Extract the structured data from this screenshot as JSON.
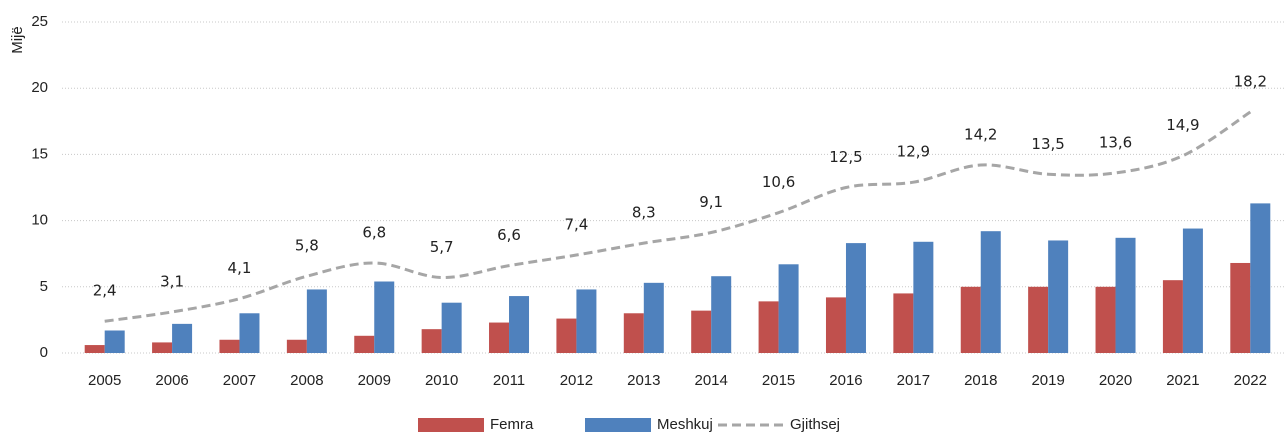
{
  "chart_data": {
    "type": "bar",
    "y_label": "Mijë",
    "categories": [
      "2005",
      "2006",
      "2007",
      "2008",
      "2009",
      "2010",
      "2011",
      "2012",
      "2013",
      "2014",
      "2015",
      "2016",
      "2017",
      "2018",
      "2019",
      "2020",
      "2021",
      "2022"
    ],
    "series": [
      {
        "name": "Femra",
        "type": "bar",
        "color": "#c0504d",
        "values": [
          0.6,
          0.8,
          1.0,
          1.0,
          1.3,
          1.8,
          2.3,
          2.6,
          3.0,
          3.2,
          3.9,
          4.2,
          4.5,
          5.0,
          5.0,
          5.0,
          5.5,
          6.8
        ]
      },
      {
        "name": "Meshkuj",
        "type": "bar",
        "color": "#4f81bd",
        "values": [
          1.7,
          2.2,
          3.0,
          4.8,
          5.4,
          3.8,
          4.3,
          4.8,
          5.3,
          5.8,
          6.7,
          8.3,
          8.4,
          9.2,
          8.5,
          8.7,
          9.4,
          11.3
        ]
      },
      {
        "name": "Gjithsej",
        "type": "line",
        "color": "#a6a6a6",
        "values": [
          2.4,
          3.1,
          4.1,
          5.8,
          6.8,
          5.7,
          6.6,
          7.4,
          8.3,
          9.1,
          10.6,
          12.5,
          12.9,
          14.2,
          13.5,
          13.6,
          14.9,
          18.2
        ],
        "value_labels": [
          "2,4",
          "3,1",
          "4,1",
          "5,8",
          "6,8",
          "5,7",
          "6,6",
          "7,4",
          "8,3",
          "9,1",
          "10,6",
          "12,5",
          "12,9",
          "14,2",
          "13,5",
          "13,6",
          "14,9",
          "18,2"
        ]
      }
    ],
    "ylim": [
      0,
      25
    ],
    "yticks": [
      0,
      5,
      10,
      15,
      20,
      25
    ],
    "grid": true,
    "legend": "bottom"
  }
}
